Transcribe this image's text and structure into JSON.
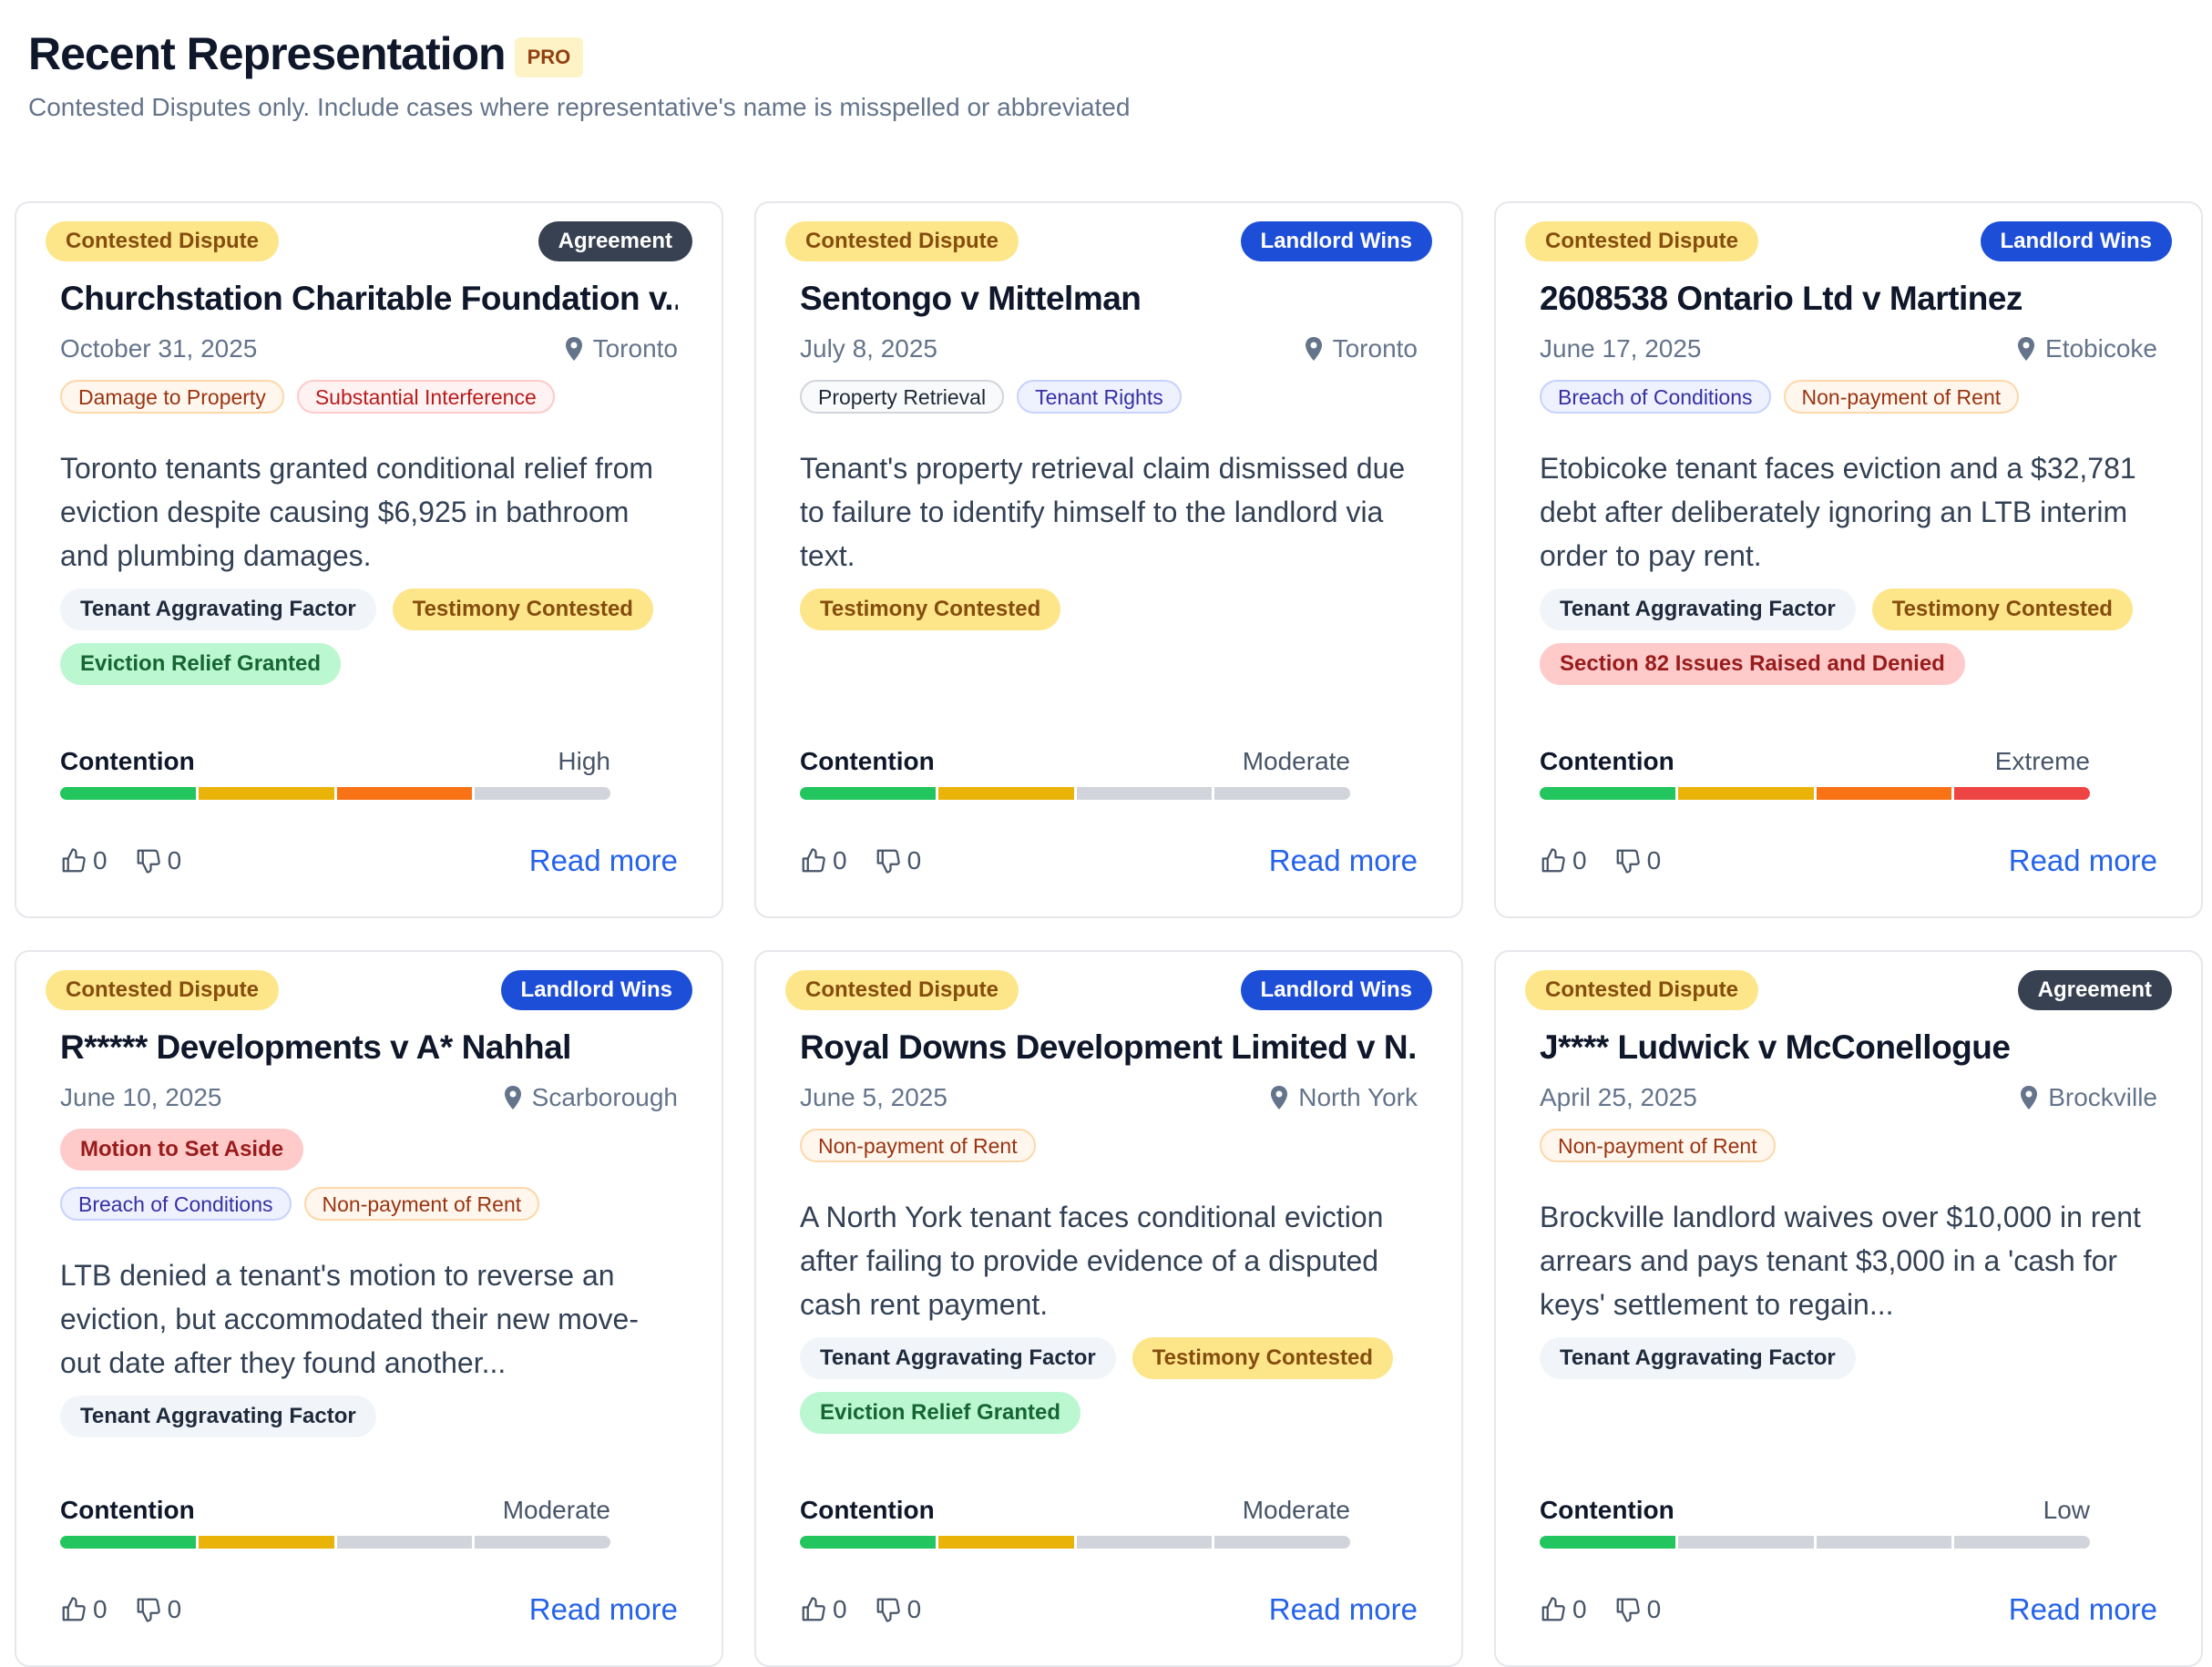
{
  "header": {
    "title": "Recent Representation",
    "badge": "PRO",
    "subtitle": "Contested Disputes only. Include cases where representative's name is misspelled or abbreviated"
  },
  "cards": [
    {
      "status": "Contested Dispute",
      "outcome": {
        "label": "Agreement",
        "color": "#374151"
      },
      "title": "Churchstation Charitable Foundation v...",
      "date": "October 31, 2025",
      "location": "Toronto",
      "categories": [
        [
          {
            "label": "Damage to Property",
            "tone": "orange-outline"
          },
          {
            "label": "Substantial Interference",
            "tone": "red-outline"
          }
        ]
      ],
      "summary": "Toronto tenants granted conditional relief from eviction despite causing $6,925 in bathroom and plumbing damages.",
      "flags": [
        {
          "label": "Tenant Aggravating Factor",
          "tone": "gray"
        },
        {
          "label": "Testimony Contested",
          "tone": "yellow"
        },
        {
          "label": "Eviction Relief Granted",
          "tone": "green"
        }
      ],
      "contention": {
        "label": "Contention",
        "level": "High",
        "score": 3
      },
      "likes": "0",
      "dislikes": "0",
      "link": "Read more"
    },
    {
      "status": "Contested Dispute",
      "outcome": {
        "label": "Landlord Wins",
        "color": "#1d4ed8"
      },
      "title": "Sentongo v Mittelman",
      "date": "July 8, 2025",
      "location": "Toronto",
      "categories": [
        [
          {
            "label": "Property Retrieval",
            "tone": "gray-outline"
          },
          {
            "label": "Tenant Rights",
            "tone": "blue-outline"
          }
        ]
      ],
      "summary": "Tenant's property retrieval claim dismissed due to failure to identify himself to the landlord via text.",
      "flags": [
        {
          "label": "Testimony Contested",
          "tone": "yellow"
        }
      ],
      "contention": {
        "label": "Contention",
        "level": "Moderate",
        "score": 2
      },
      "likes": "0",
      "dislikes": "0",
      "link": "Read more"
    },
    {
      "status": "Contested Dispute",
      "outcome": {
        "label": "Landlord Wins",
        "color": "#1d4ed8"
      },
      "title": "2608538 Ontario Ltd v Martinez",
      "date": "June 17, 2025",
      "location": "Etobicoke",
      "categories": [
        [
          {
            "label": "Breach of Conditions",
            "tone": "blue-outline"
          },
          {
            "label": "Non-payment of Rent",
            "tone": "orange-outline"
          }
        ]
      ],
      "summary": "Etobicoke tenant faces eviction and a $32,781 debt after deliberately ignoring an LTB interim order to pay rent.",
      "flags": [
        {
          "label": "Tenant Aggravating Factor",
          "tone": "gray"
        },
        {
          "label": "Testimony Contested",
          "tone": "yellow"
        },
        {
          "label": "Section 82 Issues Raised and Denied",
          "tone": "red"
        }
      ],
      "contention": {
        "label": "Contention",
        "level": "Extreme",
        "score": 4
      },
      "likes": "0",
      "dislikes": "0",
      "link": "Read more"
    },
    {
      "status": "Contested Dispute",
      "outcome": {
        "label": "Landlord Wins",
        "color": "#1d4ed8"
      },
      "title": "R***** Developments v A* Nahhal",
      "date": "June 10, 2025",
      "location": "Scarborough",
      "categories": [
        [
          {
            "label": "Motion to Set Aside",
            "tone": "red"
          }
        ],
        [
          {
            "label": "Breach of Conditions",
            "tone": "blue-outline"
          },
          {
            "label": "Non-payment of Rent",
            "tone": "orange-outline"
          }
        ]
      ],
      "summary": "LTB denied a tenant's motion to reverse an eviction, but accommodated their new move-out date after they found another...",
      "flags": [
        {
          "label": "Tenant Aggravating Factor",
          "tone": "gray"
        }
      ],
      "contention": {
        "label": "Contention",
        "level": "Moderate",
        "score": 2
      },
      "likes": "0",
      "dislikes": "0",
      "link": "Read more"
    },
    {
      "status": "Contested Dispute",
      "outcome": {
        "label": "Landlord Wins",
        "color": "#1d4ed8"
      },
      "title": "Royal Downs Development Limited v N...",
      "date": "June 5, 2025",
      "location": "North York",
      "categories": [
        [
          {
            "label": "Non-payment of Rent",
            "tone": "orange-outline"
          }
        ]
      ],
      "summary": "A North York tenant faces conditional eviction after failing to provide evidence of a disputed cash rent payment.",
      "flags": [
        {
          "label": "Tenant Aggravating Factor",
          "tone": "gray"
        },
        {
          "label": "Testimony Contested",
          "tone": "yellow"
        },
        {
          "label": "Eviction Relief Granted",
          "tone": "green"
        }
      ],
      "contention": {
        "label": "Contention",
        "level": "Moderate",
        "score": 2
      },
      "likes": "0",
      "dislikes": "0",
      "link": "Read more"
    },
    {
      "status": "Contested Dispute",
      "outcome": {
        "label": "Agreement",
        "color": "#374151"
      },
      "title": "J**** Ludwick v McConellogue",
      "date": "April 25, 2025",
      "location": "Brockville",
      "categories": [
        [
          {
            "label": "Non-payment of Rent",
            "tone": "orange-outline"
          }
        ]
      ],
      "summary": "Brockville landlord waives over $10,000 in rent arrears and pays tenant $3,000 in a 'cash for keys' settlement to regain...",
      "flags": [
        {
          "label": "Tenant Aggravating Factor",
          "tone": "gray"
        }
      ],
      "contention": {
        "label": "Contention",
        "level": "Low",
        "score": 1
      },
      "likes": "0",
      "dislikes": "0",
      "link": "Read more"
    }
  ]
}
